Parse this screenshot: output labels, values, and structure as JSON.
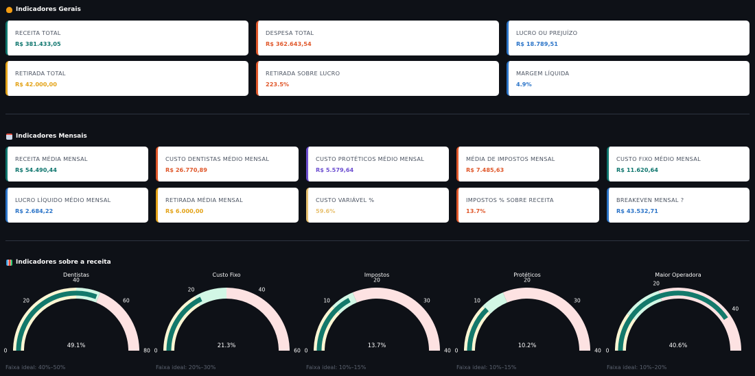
{
  "sections": {
    "gerais": {
      "icon": "fire-icon",
      "title": "Indicadores Gerais"
    },
    "mensais": {
      "icon": "calendar-icon",
      "title": "Indicadores Mensais"
    },
    "receita": {
      "icon": "bar-chart-icon",
      "title": "Indicadores sobre a receita"
    }
  },
  "gerais_cards": [
    {
      "label": "RECEITA TOTAL",
      "value": "R$ 381.433,05",
      "color": "#0f766e"
    },
    {
      "label": "DESPESA TOTAL",
      "value": "R$ 362.643,54",
      "color": "#e0582b"
    },
    {
      "label": "LUCRO OU PREJUÍZO",
      "value": "R$ 18.789,51",
      "color": "#2b74c8"
    },
    {
      "label": "RETIRADA TOTAL",
      "value": "R$ 42.000,00",
      "color": "#e3a319"
    },
    {
      "label": "RETIRADA SOBRE LUCRO",
      "value": "223.5%",
      "color": "#e0582b"
    },
    {
      "label": "MARGEM LÍQUIDA",
      "value": "4.9%",
      "color": "#2b74c8"
    }
  ],
  "mensais_cards": [
    {
      "label": "RECEITA MÉDIA MENSAL",
      "value": "R$ 54.490,44",
      "color": "#0f766e"
    },
    {
      "label": "CUSTO DENTISTAS MÉDIO MENSAL",
      "value": "R$ 26.770,89",
      "color": "#e0582b"
    },
    {
      "label": "CUSTO PROTÉTICOS MÉDIO MENSAL",
      "value": "R$ 5.579,64",
      "color": "#6d4fd1"
    },
    {
      "label": "MÉDIA DE IMPOSTOS MENSAL",
      "value": "R$ 7.485,63",
      "color": "#e0582b"
    },
    {
      "label": "CUSTO FIXO MÉDIO MENSAL",
      "value": "R$ 11.620,64",
      "color": "#0f766e"
    },
    {
      "label": "LUCRO LÍQUIDO MÉDIO MENSAL",
      "value": "R$ 2.684,22",
      "color": "#2b74c8"
    },
    {
      "label": "RETIRADA MÉDIA MENSAL",
      "value": "R$ 6.000,00",
      "color": "#e3a319"
    },
    {
      "label": "CUSTO VARIÁVEL %",
      "value": "59.6%",
      "color": "#e8c170"
    },
    {
      "label": "IMPOSTOS % SOBRE RECEITA",
      "value": "13.7%",
      "color": "#e0582b"
    },
    {
      "label": "BREAKEVEN MENSAL ?",
      "value": "R$ 43.532,71",
      "color": "#2b74c8"
    }
  ],
  "chart_data": [
    {
      "type": "gauge",
      "title": "Dentistas",
      "value": 49.1,
      "value_label": "49.1%",
      "range": [
        0,
        80
      ],
      "ideal": [
        40,
        50
      ],
      "ticks": [
        0,
        20,
        40,
        60,
        80
      ],
      "footer": "Faixa ideal: 40%–50%"
    },
    {
      "type": "gauge",
      "title": "Custo Fixo",
      "value": 21.3,
      "value_label": "21.3%",
      "range": [
        0,
        60
      ],
      "ideal": [
        20,
        30
      ],
      "ticks": [
        0,
        20,
        40,
        60
      ],
      "footer": "Faixa ideal: 20%–30%"
    },
    {
      "type": "gauge",
      "title": "Impostos",
      "value": 13.7,
      "value_label": "13.7%",
      "range": [
        0,
        40
      ],
      "ideal": [
        10,
        15
      ],
      "ticks": [
        0,
        10,
        20,
        30,
        40
      ],
      "footer": "Faixa ideal: 10%–15%"
    },
    {
      "type": "gauge",
      "title": "Protéticos",
      "value": 10.2,
      "value_label": "10.2%",
      "range": [
        0,
        40
      ],
      "ideal": [
        10,
        15
      ],
      "ticks": [
        0,
        10,
        20,
        30,
        40
      ],
      "footer": "Faixa ideal: 10%–15%"
    },
    {
      "type": "gauge",
      "title": "Maior Operadora",
      "value": 40.6,
      "value_label": "40.6%",
      "range": [
        0,
        50
      ],
      "ideal": [
        10,
        20
      ],
      "ticks": [
        0,
        20,
        40
      ],
      "footer": "Faixa ideal: 10%–20%"
    }
  ],
  "colors": {
    "below": "#fdf6d3",
    "ideal": "#d2f7e5",
    "above": "#fde2e2",
    "bar": "#13796b"
  }
}
